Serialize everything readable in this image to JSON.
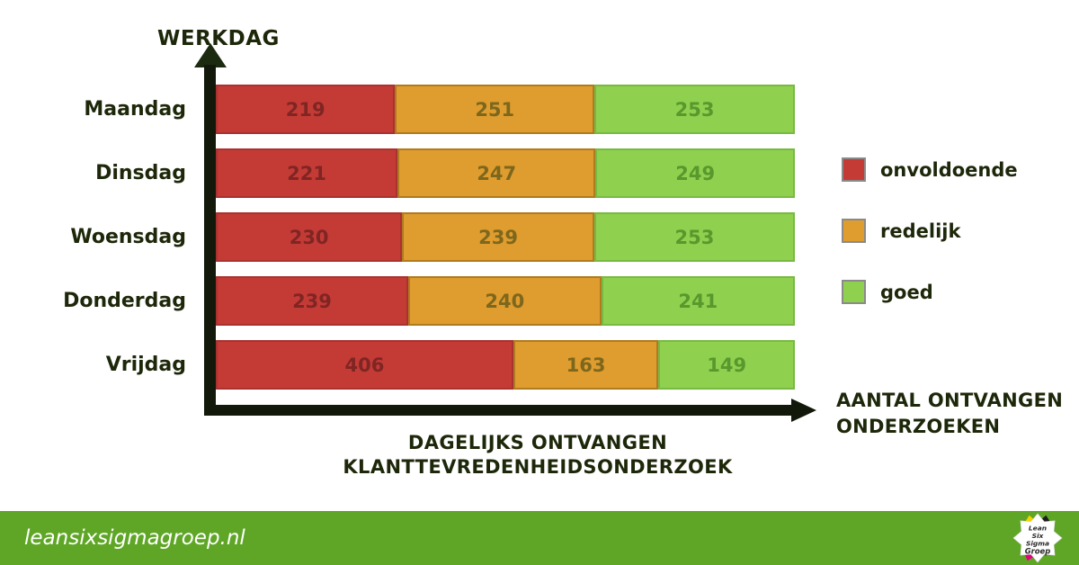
{
  "chart_data": {
    "type": "bar",
    "orientation": "horizontal",
    "stacked": true,
    "grid": false,
    "legend_position": "right",
    "title": "DAGELIJKS ONTVANGEN KLANTTEVREDENHEIDSONDERZOEK",
    "title_lines": [
      "DAGELIJKS ONTVANGEN",
      "KLANTTEVREDENHEIDSONDERZOEK"
    ],
    "y_axis_label": "WERKDAG",
    "x_axis_label": "AANTAL ONTVANGEN ONDERZOEKEN",
    "x_axis_label_lines": [
      "AANTAL ONTVANGEN",
      "ONDERZOEKEN"
    ],
    "categories": [
      "Maandag",
      "Dinsdag",
      "Woensdag",
      "Donderdag",
      "Vrijdag"
    ],
    "series": [
      {
        "name": "onvoldoende",
        "color": "#c43b36",
        "border_color": "#a93230",
        "label_color": "#7f2523",
        "values": [
          219,
          221,
          230,
          239,
          406
        ]
      },
      {
        "name": "redelijk",
        "color": "#df9c2f",
        "border_color": "#b07a1e",
        "label_color": "#7d671c",
        "values": [
          251,
          247,
          239,
          240,
          163
        ]
      },
      {
        "name": "goed",
        "color": "#8fd04f",
        "border_color": "#78b943",
        "label_color": "#58982d",
        "values": [
          253,
          249,
          253,
          241,
          149
        ]
      }
    ]
  },
  "footer": {
    "website": "leansixsigmagroep.nl",
    "background_color": "#5fa626",
    "logo": {
      "lines": [
        "Lean",
        "Six",
        "Sigma",
        "Groep"
      ],
      "facet_colors": {
        "yellow": "#f5d500",
        "black": "#1c1c1c",
        "orange": "#f08019",
        "cyan": "#2aa9e0",
        "magenta": "#e6007e",
        "green": "#5ca727"
      }
    }
  }
}
